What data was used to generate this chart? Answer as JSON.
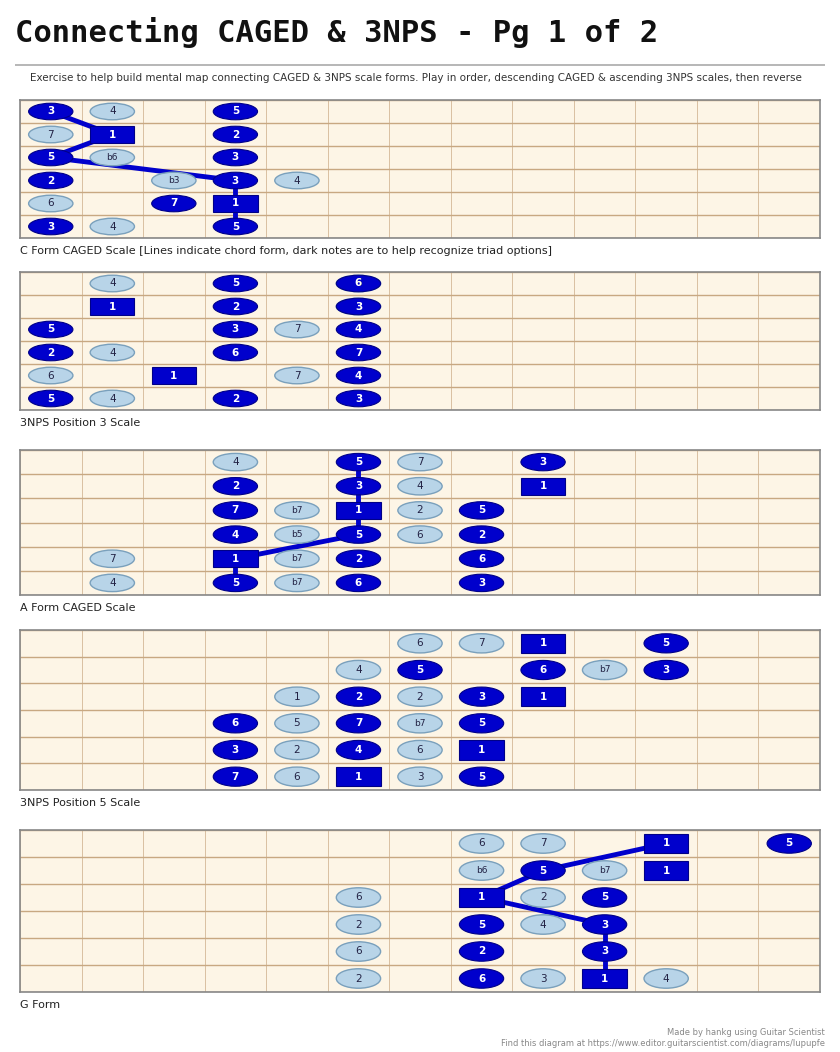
{
  "title": "Connecting CAGED & 3NPS - Pg 1 of 2",
  "subtitle": "Exercise to help build mental map connecting CAGED & 3NPS scale forms. Play in order, descending CAGED & ascending 3NPS scales, then reverse",
  "grid_bg": "#fdf5e6",
  "fret_line_color": "#d4b896",
  "string_line_color": "#c8a882",
  "border_color": "#888888",
  "footer": "Made by hankg using Guitar Scientist\nFind this diagram at https://www.editor.guitarscientist.com/diagrams/lupupfe",
  "num_frets": 13,
  "num_strings": 6,
  "diag1_notes_dark": [
    {
      "s": 0,
      "f": 0,
      "t": "3"
    },
    {
      "s": 0,
      "f": 3,
      "t": "5"
    },
    {
      "s": 1,
      "f": 1,
      "t": "1"
    },
    {
      "s": 1,
      "f": 3,
      "t": "2"
    },
    {
      "s": 2,
      "f": 0,
      "t": "5"
    },
    {
      "s": 2,
      "f": 3,
      "t": "3"
    },
    {
      "s": 3,
      "f": 0,
      "t": "2"
    },
    {
      "s": 3,
      "f": 3,
      "t": "3"
    },
    {
      "s": 4,
      "f": 2,
      "t": "7"
    },
    {
      "s": 4,
      "f": 3,
      "t": "1"
    },
    {
      "s": 5,
      "f": 0,
      "t": "3"
    },
    {
      "s": 5,
      "f": 3,
      "t": "5"
    }
  ],
  "diag1_notes_light": [
    {
      "s": 0,
      "f": 1,
      "t": "4"
    },
    {
      "s": 1,
      "f": 0,
      "t": "7"
    },
    {
      "s": 2,
      "f": 1,
      "t": "b6"
    },
    {
      "s": 3,
      "f": 2,
      "t": "b3"
    },
    {
      "s": 3,
      "f": 4,
      "t": "4"
    },
    {
      "s": 4,
      "f": 0,
      "t": "6"
    },
    {
      "s": 5,
      "f": 1,
      "t": "4"
    }
  ],
  "diag1_lines": [
    [
      {
        "s": 0,
        "f": 0
      },
      {
        "s": 1,
        "f": 1
      }
    ],
    [
      {
        "s": 1,
        "f": 1
      },
      {
        "s": 2,
        "f": 0
      }
    ],
    [
      {
        "s": 2,
        "f": 0
      },
      {
        "s": 3,
        "f": 3
      }
    ],
    [
      {
        "s": 3,
        "f": 3
      },
      {
        "s": 4,
        "f": 3
      }
    ],
    [
      {
        "s": 4,
        "f": 3
      },
      {
        "s": 5,
        "f": 3
      }
    ]
  ],
  "diag1_label": "C Form CAGED Scale [Lines indicate chord form, dark notes are to help recognize triad options]",
  "diag2_notes_dark": [
    {
      "s": 0,
      "f": 3,
      "t": "5"
    },
    {
      "s": 0,
      "f": 5,
      "t": "6"
    },
    {
      "s": 1,
      "f": 1,
      "t": "1"
    },
    {
      "s": 1,
      "f": 3,
      "t": "2"
    },
    {
      "s": 1,
      "f": 5,
      "t": "3"
    },
    {
      "s": 2,
      "f": 0,
      "t": "5"
    },
    {
      "s": 2,
      "f": 3,
      "t": "3"
    },
    {
      "s": 2,
      "f": 5,
      "t": "4"
    },
    {
      "s": 3,
      "f": 0,
      "t": "2"
    },
    {
      "s": 3,
      "f": 3,
      "t": "6"
    },
    {
      "s": 3,
      "f": 5,
      "t": "7"
    },
    {
      "s": 4,
      "f": 2,
      "t": "1"
    },
    {
      "s": 4,
      "f": 5,
      "t": "4"
    },
    {
      "s": 5,
      "f": 0,
      "t": "5"
    },
    {
      "s": 5,
      "f": 3,
      "t": "2"
    },
    {
      "s": 5,
      "f": 5,
      "t": "3"
    }
  ],
  "diag2_notes_light": [
    {
      "s": 0,
      "f": 1,
      "t": "4"
    },
    {
      "s": 0,
      "f": 5,
      "t": "6"
    },
    {
      "s": 1,
      "f": 5,
      "t": "3"
    },
    {
      "s": 2,
      "f": 4,
      "t": "7"
    },
    {
      "s": 3,
      "f": 1,
      "t": "4"
    },
    {
      "s": 4,
      "f": 0,
      "t": "6"
    },
    {
      "s": 4,
      "f": 4,
      "t": "7"
    },
    {
      "s": 5,
      "f": 1,
      "t": "4"
    }
  ],
  "diag2_lines": [],
  "diag2_label": "3NPS Position 3 Scale",
  "diag3_notes_dark": [
    {
      "s": 0,
      "f": 5,
      "t": "5"
    },
    {
      "s": 0,
      "f": 8,
      "t": "3"
    },
    {
      "s": 1,
      "f": 3,
      "t": "2"
    },
    {
      "s": 1,
      "f": 5,
      "t": "3"
    },
    {
      "s": 1,
      "f": 8,
      "t": "1"
    },
    {
      "s": 2,
      "f": 3,
      "t": "7"
    },
    {
      "s": 2,
      "f": 5,
      "t": "1"
    },
    {
      "s": 2,
      "f": 7,
      "t": "5"
    },
    {
      "s": 3,
      "f": 3,
      "t": "4"
    },
    {
      "s": 3,
      "f": 5,
      "t": "5"
    },
    {
      "s": 3,
      "f": 7,
      "t": "2"
    },
    {
      "s": 4,
      "f": 3,
      "t": "1"
    },
    {
      "s": 4,
      "f": 5,
      "t": "2"
    },
    {
      "s": 4,
      "f": 7,
      "t": "6"
    },
    {
      "s": 5,
      "f": 3,
      "t": "5"
    },
    {
      "s": 5,
      "f": 5,
      "t": "6"
    },
    {
      "s": 5,
      "f": 7,
      "t": "3"
    }
  ],
  "diag3_notes_light": [
    {
      "s": 0,
      "f": 3,
      "t": "4"
    },
    {
      "s": 0,
      "f": 6,
      "t": "7"
    },
    {
      "s": 1,
      "f": 6,
      "t": "4"
    },
    {
      "s": 2,
      "f": 4,
      "t": "b7"
    },
    {
      "s": 2,
      "f": 6,
      "t": "2"
    },
    {
      "s": 3,
      "f": 4,
      "t": "b5"
    },
    {
      "s": 3,
      "f": 6,
      "t": "6"
    },
    {
      "s": 4,
      "f": 1,
      "t": "7"
    },
    {
      "s": 4,
      "f": 4,
      "t": "b7"
    },
    {
      "s": 5,
      "f": 1,
      "t": "4"
    },
    {
      "s": 5,
      "f": 4,
      "t": "b7"
    }
  ],
  "diag3_lines": [
    [
      {
        "s": 0,
        "f": 5
      },
      {
        "s": 1,
        "f": 5
      }
    ],
    [
      {
        "s": 1,
        "f": 5
      },
      {
        "s": 2,
        "f": 5
      }
    ],
    [
      {
        "s": 2,
        "f": 5
      },
      {
        "s": 3,
        "f": 5
      }
    ],
    [
      {
        "s": 3,
        "f": 5
      },
      {
        "s": 4,
        "f": 3
      }
    ],
    [
      {
        "s": 4,
        "f": 3
      },
      {
        "s": 5,
        "f": 3
      }
    ]
  ],
  "diag3_label": "A Form CAGED Scale",
  "diag4_notes_dark": [
    {
      "s": 0,
      "f": 8,
      "t": "1"
    },
    {
      "s": 0,
      "f": 10,
      "t": "5"
    },
    {
      "s": 1,
      "f": 6,
      "t": "5"
    },
    {
      "s": 1,
      "f": 8,
      "t": "6"
    },
    {
      "s": 1,
      "f": 10,
      "t": "3"
    },
    {
      "s": 2,
      "f": 5,
      "t": "2"
    },
    {
      "s": 2,
      "f": 7,
      "t": "3"
    },
    {
      "s": 2,
      "f": 8,
      "t": "1"
    },
    {
      "s": 3,
      "f": 3,
      "t": "6"
    },
    {
      "s": 3,
      "f": 5,
      "t": "7"
    },
    {
      "s": 3,
      "f": 7,
      "t": "5"
    },
    {
      "s": 4,
      "f": 3,
      "t": "3"
    },
    {
      "s": 4,
      "f": 5,
      "t": "4"
    },
    {
      "s": 4,
      "f": 7,
      "t": "1"
    },
    {
      "s": 5,
      "f": 3,
      "t": "7"
    },
    {
      "s": 5,
      "f": 5,
      "t": "1"
    },
    {
      "s": 5,
      "f": 7,
      "t": "5"
    }
  ],
  "diag4_notes_light": [
    {
      "s": 0,
      "f": 6,
      "t": "6"
    },
    {
      "s": 0,
      "f": 7,
      "t": "7"
    },
    {
      "s": 1,
      "f": 5,
      "t": "4"
    },
    {
      "s": 1,
      "f": 9,
      "t": "b7"
    },
    {
      "s": 2,
      "f": 4,
      "t": "1"
    },
    {
      "s": 2,
      "f": 6,
      "t": "2"
    },
    {
      "s": 3,
      "f": 4,
      "t": "5"
    },
    {
      "s": 3,
      "f": 6,
      "t": "b7"
    },
    {
      "s": 4,
      "f": 4,
      "t": "2"
    },
    {
      "s": 4,
      "f": 6,
      "t": "6"
    },
    {
      "s": 5,
      "f": 4,
      "t": "6"
    },
    {
      "s": 5,
      "f": 6,
      "t": "3"
    }
  ],
  "diag4_lines": [],
  "diag4_label": "3NPS Position 5 Scale",
  "diag5_notes_dark": [
    {
      "s": 0,
      "f": 10,
      "t": "1"
    },
    {
      "s": 0,
      "f": 12,
      "t": "5"
    },
    {
      "s": 1,
      "f": 8,
      "t": "5"
    },
    {
      "s": 1,
      "f": 10,
      "t": "1"
    },
    {
      "s": 2,
      "f": 7,
      "t": "1"
    },
    {
      "s": 2,
      "f": 9,
      "t": "5"
    },
    {
      "s": 3,
      "f": 7,
      "t": "5"
    },
    {
      "s": 3,
      "f": 9,
      "t": "3"
    },
    {
      "s": 4,
      "f": 7,
      "t": "2"
    },
    {
      "s": 4,
      "f": 9,
      "t": "3"
    },
    {
      "s": 5,
      "f": 7,
      "t": "6"
    },
    {
      "s": 5,
      "f": 9,
      "t": "1"
    }
  ],
  "diag5_notes_light": [
    {
      "s": 0,
      "f": 7,
      "t": "6"
    },
    {
      "s": 0,
      "f": 8,
      "t": "7"
    },
    {
      "s": 1,
      "f": 7,
      "t": "b6"
    },
    {
      "s": 1,
      "f": 9,
      "t": "b7"
    },
    {
      "s": 2,
      "f": 5,
      "t": "6"
    },
    {
      "s": 2,
      "f": 8,
      "t": "2"
    },
    {
      "s": 3,
      "f": 5,
      "t": "2"
    },
    {
      "s": 3,
      "f": 8,
      "t": "4"
    },
    {
      "s": 4,
      "f": 5,
      "t": "6"
    },
    {
      "s": 5,
      "f": 5,
      "t": "2"
    },
    {
      "s": 5,
      "f": 8,
      "t": "3"
    },
    {
      "s": 5,
      "f": 10,
      "t": "4"
    }
  ],
  "diag5_lines": [
    [
      {
        "s": 0,
        "f": 10
      },
      {
        "s": 1,
        "f": 8
      }
    ],
    [
      {
        "s": 1,
        "f": 8
      },
      {
        "s": 2,
        "f": 7
      }
    ],
    [
      {
        "s": 2,
        "f": 7
      },
      {
        "s": 3,
        "f": 9
      }
    ],
    [
      {
        "s": 3,
        "f": 9
      },
      {
        "s": 4,
        "f": 9
      }
    ],
    [
      {
        "s": 4,
        "f": 9
      },
      {
        "s": 5,
        "f": 9
      }
    ]
  ],
  "diag5_label": "G Form"
}
